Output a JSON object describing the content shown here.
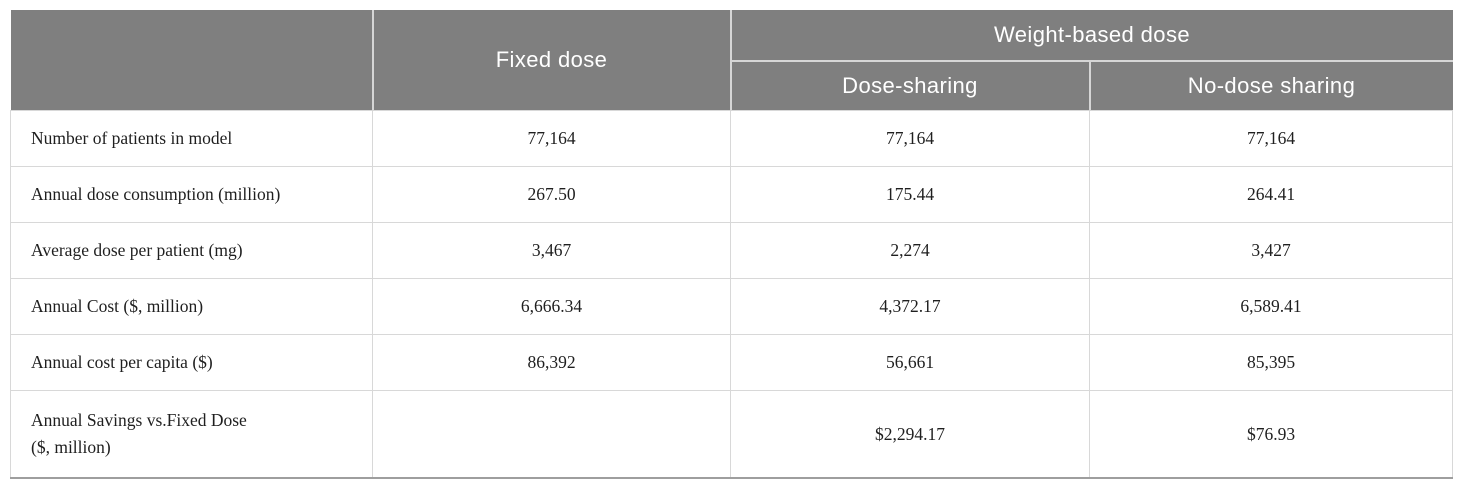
{
  "table": {
    "header": {
      "corner_label": "",
      "fixed_dose_label": "Fixed dose",
      "weight_based_label": "Weight-based dose",
      "dose_sharing_label": "Dose-sharing",
      "no_dose_sharing_label": "No-dose sharing"
    },
    "rows": [
      {
        "label": "Number of patients in model",
        "fixed": "77,164",
        "dose_sharing": "77,164",
        "no_dose_sharing": "77,164"
      },
      {
        "label": "Annual dose consumption (million)",
        "fixed": "267.50",
        "dose_sharing": "175.44",
        "no_dose_sharing": "264.41"
      },
      {
        "label": "Average dose per patient (mg)",
        "fixed": "3,467",
        "dose_sharing": "2,274",
        "no_dose_sharing": "3,427"
      },
      {
        "label": "Annual Cost ($, million)",
        "fixed": "6,666.34",
        "dose_sharing": "4,372.17",
        "no_dose_sharing": "6,589.41"
      },
      {
        "label": "Annual cost per capita ($)",
        "fixed": "86,392",
        "dose_sharing": "56,661",
        "no_dose_sharing": "85,395"
      },
      {
        "label": "Annual Savings vs.Fixed Dose\n($, million)",
        "fixed": "",
        "dose_sharing": "$2,294.17",
        "no_dose_sharing": "$76.93"
      }
    ],
    "colors": {
      "header_bg": "#7f7f7f",
      "header_text": "#ffffff",
      "grid_line": "#d8d8d8",
      "bottom_border": "#9e9e9e",
      "body_text": "#1f1f1f"
    }
  }
}
